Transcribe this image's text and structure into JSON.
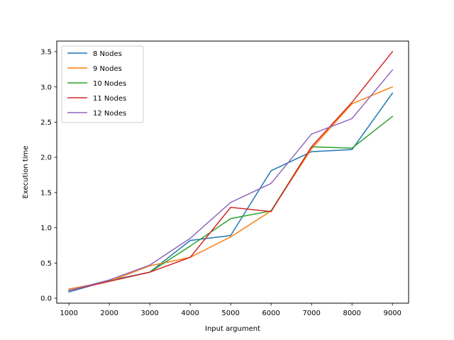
{
  "chart_data": {
    "type": "line",
    "xlabel": "Input argument",
    "ylabel": "Execution time",
    "x": [
      1000,
      2000,
      3000,
      4000,
      5000,
      6000,
      7000,
      8000,
      9000
    ],
    "xlim": [
      700,
      9400
    ],
    "ylim": [
      -0.07,
      3.65
    ],
    "xticks": [
      1000,
      2000,
      3000,
      4000,
      5000,
      6000,
      7000,
      8000,
      9000
    ],
    "yticks": [
      0.0,
      0.5,
      1.0,
      1.5,
      2.0,
      2.5,
      3.0,
      3.5
    ],
    "xtick_labels": [
      "1000",
      "2000",
      "3000",
      "4000",
      "5000",
      "6000",
      "7000",
      "8000",
      "9000"
    ],
    "ytick_labels": [
      "0.0",
      "0.5",
      "1.0",
      "1.5",
      "2.0",
      "2.5",
      "3.0",
      "3.5"
    ],
    "grid": false,
    "legend_position": "top-left",
    "series": [
      {
        "name": "8 Nodes",
        "color": "#1f77b4",
        "values": [
          0.09,
          0.25,
          0.37,
          0.82,
          0.89,
          1.81,
          2.08,
          2.11,
          2.91
        ]
      },
      {
        "name": "9 Nodes",
        "color": "#ff7f0e",
        "values": [
          0.13,
          0.24,
          0.46,
          0.58,
          0.87,
          1.24,
          2.12,
          2.76,
          3.0
        ]
      },
      {
        "name": "10 Nodes",
        "color": "#2ca02c",
        "values": [
          0.11,
          0.24,
          0.37,
          0.74,
          1.13,
          1.24,
          2.15,
          2.13,
          2.58
        ]
      },
      {
        "name": "11 Nodes",
        "color": "#d62728",
        "values": [
          0.11,
          0.24,
          0.37,
          0.58,
          1.29,
          1.23,
          2.15,
          2.78,
          3.5
        ]
      },
      {
        "name": "12 Nodes",
        "color": "#9467bd",
        "values": [
          0.11,
          0.26,
          0.47,
          0.85,
          1.36,
          1.63,
          2.33,
          2.55,
          3.24
        ]
      }
    ]
  }
}
